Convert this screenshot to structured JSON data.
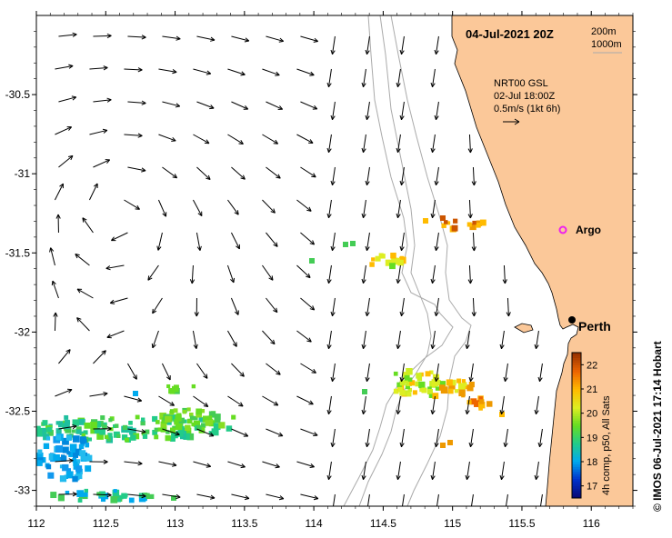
{
  "title": "04-Jul-2021 20Z",
  "bathymetry_legend": [
    "200m",
    "1000m"
  ],
  "current_info": {
    "product": "NRT00 GSL",
    "time": "02-Jul 18:00Z",
    "scale": "0.5m/s (1kt 6h)"
  },
  "places": [
    {
      "name": "Argo",
      "lon": 115.88,
      "lat": -31.42,
      "marker": "circle-magenta"
    },
    {
      "name": "Perth",
      "lon": 115.86,
      "lat": -31.95,
      "marker": "dot-black"
    }
  ],
  "axes": {
    "x_ticks": [
      "112",
      "112.5",
      "113",
      "113.5",
      "114",
      "114.5",
      "115",
      "115.5",
      "116"
    ],
    "y_ticks": [
      "-30.5",
      "-31",
      "-31.5",
      "-32",
      "-32.5",
      "-33"
    ],
    "xlim": [
      112,
      116.3
    ],
    "ylim": [
      -33.1,
      -30.0
    ]
  },
  "colorbar": {
    "label": "4h comp, p50, All Sats",
    "ticks": [
      "17",
      "18",
      "19",
      "20",
      "21",
      "22"
    ],
    "range": [
      16.5,
      22.5
    ],
    "colors": [
      "#0a0a78",
      "#0033cc",
      "#00aaee",
      "#22cc88",
      "#66dd22",
      "#ddee22",
      "#ffbb00",
      "#ee6600",
      "#993300"
    ]
  },
  "credit": "© IMOS 06-Jul-2021 17:14 Hobart",
  "colors": {
    "land": "#fbc899",
    "ocean": "#ffffff",
    "arrow": "#000000",
    "isobath": "#aaaaaa"
  }
}
